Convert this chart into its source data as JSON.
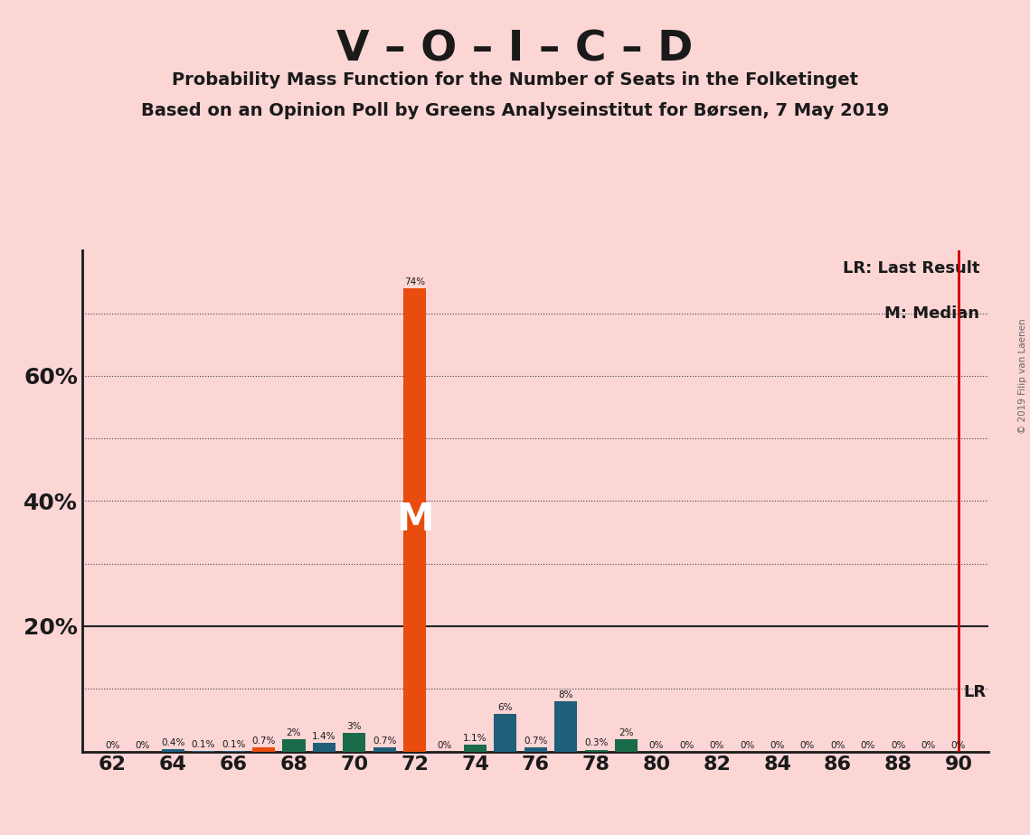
{
  "title": "V – O – I – C – D",
  "subtitle1": "Probability Mass Function for the Number of Seats in the Folketinget",
  "subtitle2": "Based on an Opinion Poll by Greens Analyseinstitut for Børsen, 7 May 2019",
  "copyright": "© 2019 Filip van Laenen",
  "background_color": "#fcd5d5",
  "seats": [
    62,
    63,
    64,
    65,
    66,
    67,
    68,
    69,
    70,
    71,
    72,
    73,
    74,
    75,
    76,
    77,
    78,
    79,
    80,
    81,
    82,
    83,
    84,
    85,
    86,
    87,
    88,
    89,
    90
  ],
  "probabilities": [
    0.0,
    0.0,
    0.4,
    0.1,
    0.1,
    0.7,
    2.0,
    1.4,
    3.0,
    0.7,
    74.0,
    0.0,
    1.1,
    6.0,
    0.7,
    8.0,
    0.3,
    2.0,
    0.0,
    0.0,
    0.0,
    0.0,
    0.0,
    0.0,
    0.0,
    0.0,
    0.0,
    0.0,
    0.0
  ],
  "bar_colors": [
    "#1f5f7a",
    "#1f5f7a",
    "#1f5f7a",
    "#1f5f7a",
    "#1f5f7a",
    "#e84c0e",
    "#1a6b4a",
    "#1f5f7a",
    "#1a6b4a",
    "#1f5f7a",
    "#e84c0e",
    "#1f5f7a",
    "#1a6b4a",
    "#1f5f7a",
    "#1f5f7a",
    "#1f5f7a",
    "#1a6b4a",
    "#1a6b4a",
    "#1f5f7a",
    "#1f5f7a",
    "#1f5f7a",
    "#1f5f7a",
    "#1f5f7a",
    "#1f5f7a",
    "#1f5f7a",
    "#1f5f7a",
    "#1f5f7a",
    "#1f5f7a",
    "#1f5f7a"
  ],
  "median_seat": 72,
  "last_result_seat": 90,
  "ylim_max": 80,
  "xmin": 61,
  "xmax": 91,
  "legend_lr": "LR: Last Result",
  "legend_m": "M: Median",
  "lr_color": "#cc0000",
  "grid_levels": [
    10,
    20,
    30,
    40,
    50,
    60,
    70
  ],
  "solid_line_level": 20,
  "ytick_vals": [
    20,
    40,
    60
  ],
  "label_fontsize": 7.5,
  "bar_width": 0.75
}
